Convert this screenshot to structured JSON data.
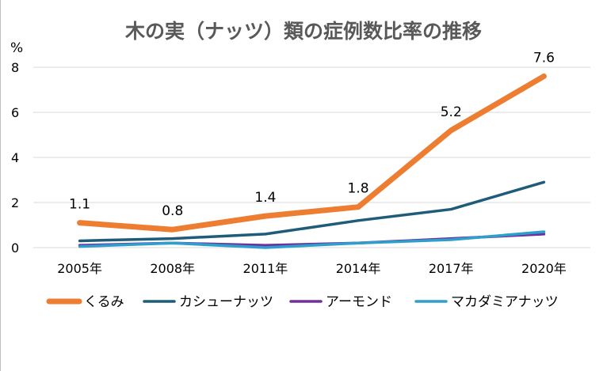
{
  "chart_data": {
    "type": "line",
    "title": "木の実（ナッツ）類の症例数比率の推移",
    "ylabel": "%",
    "categories": [
      "2005年",
      "2008年",
      "2011年",
      "2014年",
      "2017年",
      "2020年"
    ],
    "ylim": [
      0,
      8
    ],
    "yticks": [
      "0",
      "2",
      "4",
      "6",
      "8"
    ],
    "grid": true,
    "legend": "bottom",
    "series": [
      {
        "name": "くるみ",
        "color": "#ED7D31",
        "values": [
          1.1,
          0.8,
          1.4,
          1.8,
          5.2,
          7.6
        ],
        "labels": [
          "1.1",
          "0.8",
          "1.4",
          "1.8",
          "5.2",
          "7.6"
        ]
      },
      {
        "name": "カシューナッツ",
        "color": "#1F5C7A",
        "values": [
          0.3,
          0.4,
          0.6,
          1.2,
          1.7,
          2.9
        ]
      },
      {
        "name": "アーモンド",
        "color": "#7030A0",
        "values": [
          0.1,
          0.2,
          0.1,
          0.2,
          0.4,
          0.6
        ]
      },
      {
        "name": "マカダミアナッツ",
        "color": "#2E9FCB",
        "values": [
          0.05,
          0.2,
          0.0,
          0.2,
          0.35,
          0.7
        ]
      }
    ]
  }
}
